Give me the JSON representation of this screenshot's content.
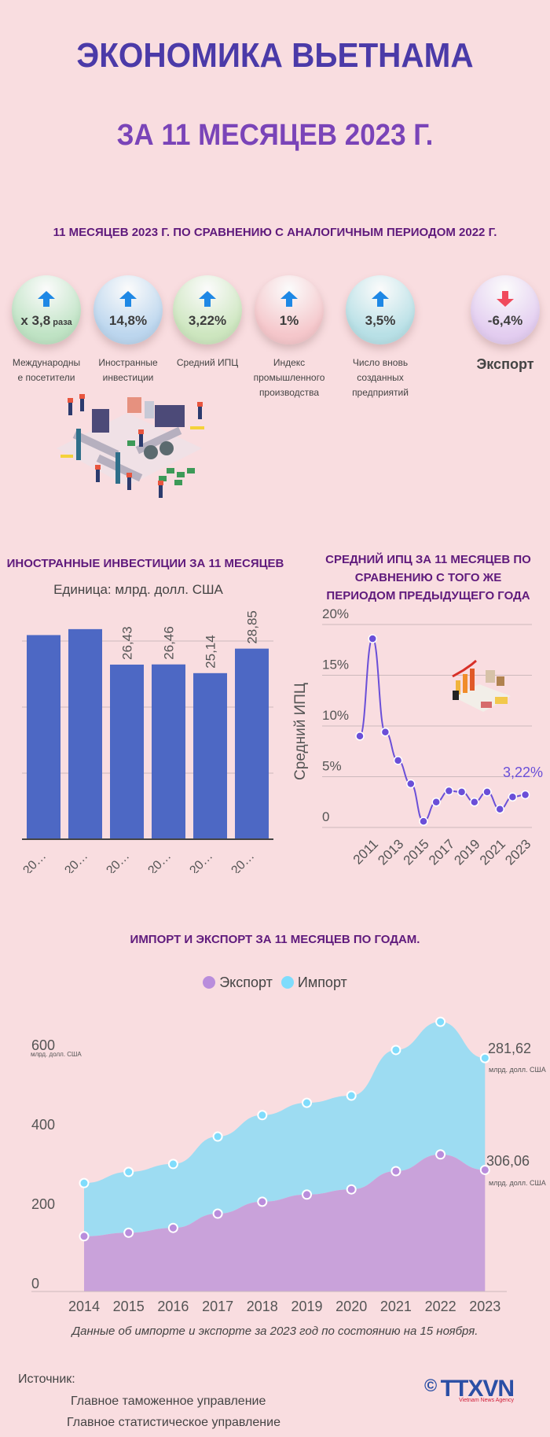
{
  "header": {
    "title": "ЭКОНОМИКА ВЬЕТНАМА",
    "subtitle": "ЗА 11 МЕСЯЦЕВ 2023 Г.",
    "comparison_caption": "11 МЕСЯЦЕВ 2023 Г. ПО СРАВНЕНИЮ С АНАЛОГИЧНЫМ ПЕРИОДОМ 2022 Г."
  },
  "kpis": [
    {
      "value": "х 3,8",
      "suffix": "раза",
      "label": "Международны е посетители",
      "label_lines": [
        "Международны",
        "е посетители"
      ],
      "direction": "up",
      "color": "#bfe3c4",
      "icon": "arrow-up-icon"
    },
    {
      "value": "14,8%",
      "suffix": "",
      "label_lines": [
        "Иностранные",
        "инвестиции"
      ],
      "direction": "up",
      "color": "#bcd6ee",
      "icon": "arrow-up-icon"
    },
    {
      "value": "3,22%",
      "suffix": "",
      "label_lines": [
        "Средний ИПЦ"
      ],
      "direction": "up",
      "color": "#cde6bf",
      "icon": "arrow-up-icon"
    },
    {
      "value": "1%",
      "suffix": "",
      "label_lines": [
        "Индекс",
        "промышленного",
        "производства"
      ],
      "direction": "up",
      "color": "#f5c7cb",
      "icon": "arrow-up-icon"
    },
    {
      "value": "3,5%",
      "suffix": "",
      "label_lines": [
        "Число вновь",
        "созданных",
        "предприятий"
      ],
      "direction": "up",
      "color": "#b8e0e6",
      "icon": "arrow-up-icon"
    },
    {
      "value": "-6,4%",
      "suffix": "",
      "label_lines": [
        "Экспорт"
      ],
      "direction": "down",
      "color": "#e3cdf0",
      "icon": "arrow-down-icon"
    }
  ],
  "colors": {
    "background": "#f9dde0",
    "title": "#4b3aa8",
    "subtitle": "#7a44b8",
    "section_title": "#5f1a7c",
    "bar": "#4d68c4",
    "cpi_line": "#6a4fd8",
    "export_area": "#c9a2da",
    "import_area": "#9ddcf2",
    "arrow_up": "#1e88e5",
    "arrow_down": "#f04a5c"
  },
  "fdi_chart": {
    "title": "ИНОСТРАННЫЕ ИНВЕСТИЦИИ ЗА 11 МЕСЯЦЕВ",
    "unit": "Единица: млрд. долл. США",
    "tick_label": "20..."
  },
  "cpi_chart": {
    "title_lines": [
      "СРЕДНИЙ ИПЦ ЗА 11 МЕСЯЦЕВ ПО",
      "СРАВНЕНИЮ С ТОГО ЖЕ",
      "ПЕРИОДОМ ПРЕДЫДУЩЕГО ГОДА"
    ],
    "ylabel": "Средний ИПЦ",
    "last_label": "3,22%"
  },
  "trade_chart": {
    "title": "ИМПОРТ И ЭКСПОРТ ЗА 11 МЕСЯЦЕВ ПО ГОДАМ.",
    "legend": [
      "Экспорт",
      "Импорт"
    ],
    "unit_small": "млрд. долл. США",
    "import_label": "281,62",
    "export_label": "306,06"
  },
  "chart_data": [
    {
      "type": "bar",
      "title": "ИНОСТРАННЫЕ ИНВЕСТИЦИИ ЗА 11 МЕСЯЦЕВ",
      "subtitle": "Единица: млрд. долл. США",
      "categories": [
        "20…",
        "20…",
        "20…",
        "20…",
        "20…",
        "20…"
      ],
      "values": [
        30.9,
        31.8,
        26.43,
        26.46,
        25.14,
        28.85
      ],
      "data_labels": [
        "",
        "",
        "26,43",
        "26,46",
        "25,14",
        "28,85"
      ],
      "xlabel": "",
      "ylabel": "",
      "ylim": [
        0,
        30
      ],
      "gridlines": [
        10,
        20,
        30
      ],
      "grid": true,
      "legend": "none"
    },
    {
      "type": "line",
      "title": "СРЕДНИЙ ИПЦ ЗА 11 МЕСЯЦЕВ ПО СРАВНЕНИЮ С ТОГО ЖЕ ПЕРИОДОМ ПРЕДЫДУЩЕГО ГОДА",
      "x": [
        2010,
        2011,
        2012,
        2013,
        2014,
        2015,
        2016,
        2017,
        2018,
        2019,
        2020,
        2021,
        2022,
        2023
      ],
      "xtick_labels": [
        "2011",
        "2013",
        "2015",
        "2017",
        "2019",
        "2021",
        "2023"
      ],
      "values": [
        9.0,
        18.6,
        9.4,
        6.6,
        4.3,
        0.6,
        2.5,
        3.6,
        3.5,
        2.5,
        3.5,
        1.8,
        3.0,
        3.22
      ],
      "ylabel": "Средний ИПЦ",
      "ytick_labels": [
        "0",
        "5%",
        "10%",
        "15%",
        "20%"
      ],
      "ylim": [
        0,
        20
      ],
      "annotation": "3,22%",
      "grid": true
    },
    {
      "type": "area",
      "stacked": true,
      "title": "ИМПОРТ И ЭКСПОРТ ЗА 11 МЕСЯЦЕВ ПО ГОДАМ.",
      "categories": [
        "2014",
        "2015",
        "2016",
        "2017",
        "2018",
        "2019",
        "2020",
        "2021",
        "2022",
        "2023"
      ],
      "series": [
        {
          "name": "Экспорт",
          "values": [
            139,
            148,
            160,
            196,
            226,
            244,
            257,
            303,
            345,
            306.06
          ]
        },
        {
          "name": "Импорт",
          "values": [
            134,
            153,
            161,
            194,
            218,
            231,
            236,
            305,
            334,
            281.62
          ]
        }
      ],
      "ytick_labels": [
        "0",
        "200",
        "400",
        "600"
      ],
      "yunit": "млрд. долл. США",
      "ylim": [
        0,
        700
      ],
      "legend_position": "top",
      "annotations": [
        "281,62 млрд. долл. США",
        "306,06 млрд. долл. США"
      ],
      "note": "Данные об импорте и экспорте за 2023 год по состоянию на 15 ноября."
    }
  ],
  "footer": {
    "note": "Данные об импорте и экспорте за 2023 год по состоянию на 15 ноября.",
    "source_heading": "Источник:",
    "sources": [
      "Главное таможенное управление",
      "Главное статистическое управление"
    ],
    "logo_text": "TTXVN",
    "logo_subtext": "Vietnam News Agency",
    "copyright": "©"
  }
}
